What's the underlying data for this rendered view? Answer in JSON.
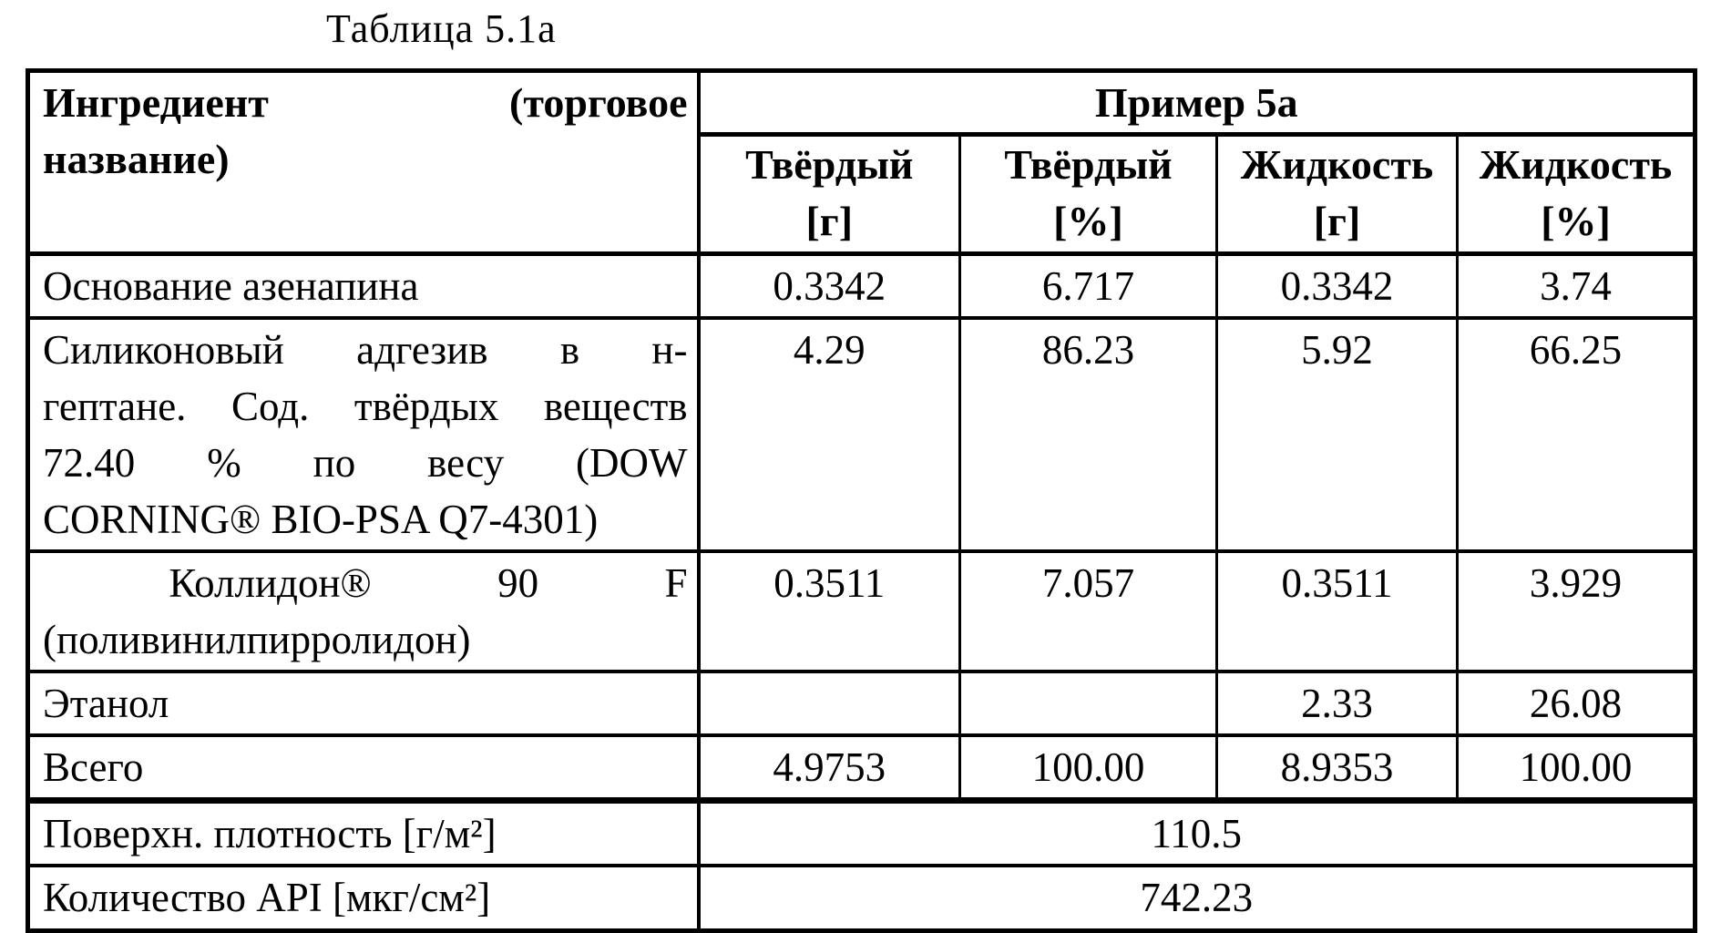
{
  "page": {
    "title": "Таблица 5.1a"
  },
  "colors": {
    "text": "#000000",
    "background": "#ffffff",
    "border": "#000000"
  },
  "table": {
    "header": {
      "ingredient_label_lines": [
        "Ингредиент (торговое",
        "название)"
      ],
      "group_label": "Пример 5а",
      "columns": [
        {
          "name_line": "Твёрдый",
          "unit_line": "[г]"
        },
        {
          "name_line": "Твёрдый",
          "unit_line": "[%]"
        },
        {
          "name_line": "Жидкость",
          "unit_line": "[г]"
        },
        {
          "name_line": "Жидкость",
          "unit_line": "[%]"
        }
      ]
    },
    "rows": [
      {
        "label_lines": [
          "Основание азенапина"
        ],
        "values": [
          "0.3342",
          "6.717",
          "0.3342",
          "3.74"
        ]
      },
      {
        "label_lines": [
          "Силиконовый адгезив в н-",
          "гептане. Сод. твёрдых веществ",
          "72.40 % по весу (DOW",
          "CORNING® BIO-PSA Q7-4301)"
        ],
        "values": [
          "4.29",
          "86.23",
          "5.92",
          "66.25"
        ]
      },
      {
        "label_lines": [
          " Коллидон® 90 F",
          "(поливинилпирролидон)"
        ],
        "values": [
          "0.3511",
          "7.057",
          "0.3511",
          "3.929"
        ]
      },
      {
        "label_lines": [
          "Этанол"
        ],
        "values": [
          "",
          "",
          "2.33",
          "26.08"
        ]
      },
      {
        "label_lines": [
          "Всего"
        ],
        "values": [
          "4.9753",
          "100.00",
          "8.9353",
          "100.00"
        ]
      }
    ],
    "summary_rows": [
      {
        "label": "Поверхн. плотность [г/м²]",
        "value": "110.5"
      },
      {
        "label": "Количество API [мкг/см²]",
        "value": "742.23"
      }
    ]
  }
}
